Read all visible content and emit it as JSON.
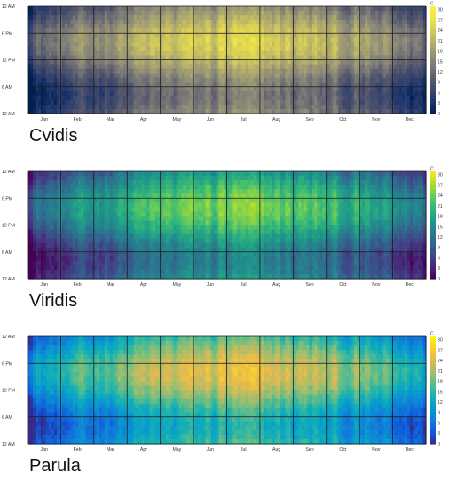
{
  "chart_data": [
    {
      "type": "heatmap",
      "title": "Cvidis",
      "colormap": "cividis",
      "x_tick_labels": [
        "Jan",
        "Feb",
        "Mar",
        "Apr",
        "May",
        "Jun",
        "Jul",
        "Aug",
        "Sep",
        "Oct",
        "Nov",
        "Dec"
      ],
      "y_tick_labels": [
        "12 AM",
        "6 PM",
        "12 PM",
        "6 AM",
        "12 AM"
      ],
      "colorbar_label": "C",
      "colorbar_ticks": [
        0,
        3,
        6,
        9,
        12,
        15,
        18,
        21,
        24,
        27,
        30
      ],
      "value_range": [
        0,
        31
      ]
    },
    {
      "type": "heatmap",
      "title": "Viridis",
      "colormap": "viridis",
      "x_tick_labels": [
        "Jan",
        "Feb",
        "Mar",
        "Apr",
        "May",
        "Jun",
        "Jul",
        "Aug",
        "Sep",
        "Oct",
        "Nov",
        "Dec"
      ],
      "y_tick_labels": [
        "12 AM",
        "6 PM",
        "12 PM",
        "6 AM",
        "12 AM"
      ],
      "colorbar_label": "C",
      "colorbar_ticks": [
        0,
        3,
        6,
        9,
        12,
        15,
        18,
        21,
        24,
        27,
        30
      ],
      "value_range": [
        0,
        31
      ]
    },
    {
      "type": "heatmap",
      "title": "Parula",
      "colormap": "parula",
      "x_tick_labels": [
        "Jan",
        "Feb",
        "Mar",
        "Apr",
        "May",
        "Jun",
        "Jul",
        "Aug",
        "Sep",
        "Oct",
        "Nov",
        "Dec"
      ],
      "y_tick_labels": [
        "12 AM",
        "6 PM",
        "12 PM",
        "6 AM",
        "12 AM"
      ],
      "colorbar_label": "C",
      "colorbar_ticks": [
        0,
        3,
        6,
        9,
        12,
        15,
        18,
        21,
        24,
        27,
        30
      ],
      "value_range": [
        0,
        31
      ]
    }
  ]
}
